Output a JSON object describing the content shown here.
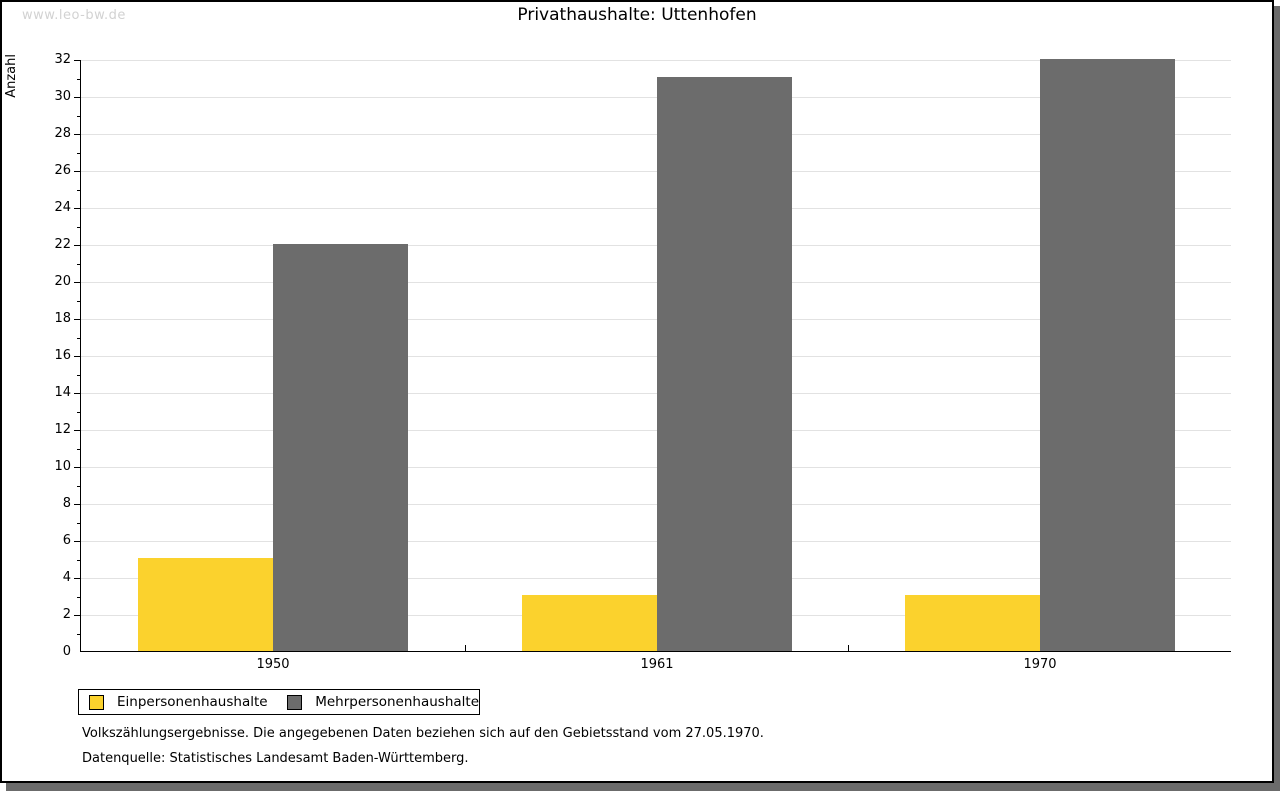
{
  "watermark": "www.leo-bw.de",
  "title": "Privathaushalte: Uttenhofen",
  "chart_data": {
    "type": "bar",
    "categories": [
      "1950",
      "1961",
      "1970"
    ],
    "series": [
      {
        "name": "Einpersonenhaushalte",
        "color": "#fbd22d",
        "values": [
          5,
          3,
          3
        ]
      },
      {
        "name": "Mehrpersonenhaushalte",
        "color": "#6c6c6c",
        "values": [
          22,
          31,
          32
        ]
      }
    ],
    "xlabel": "",
    "ylabel": "Anzahl",
    "ylim": [
      0,
      32
    ],
    "ytick_step": 2,
    "grid": true,
    "gridline_color": "#e2e2e2",
    "legend_position": "bottom-left"
  },
  "footnotes": [
    "Volkszählungsergebnisse. Die angegebenen Daten beziehen sich auf den Gebietsstand vom 27.05.1970.",
    "Datenquelle: Statistisches Landesamt Baden-Württemberg."
  ]
}
